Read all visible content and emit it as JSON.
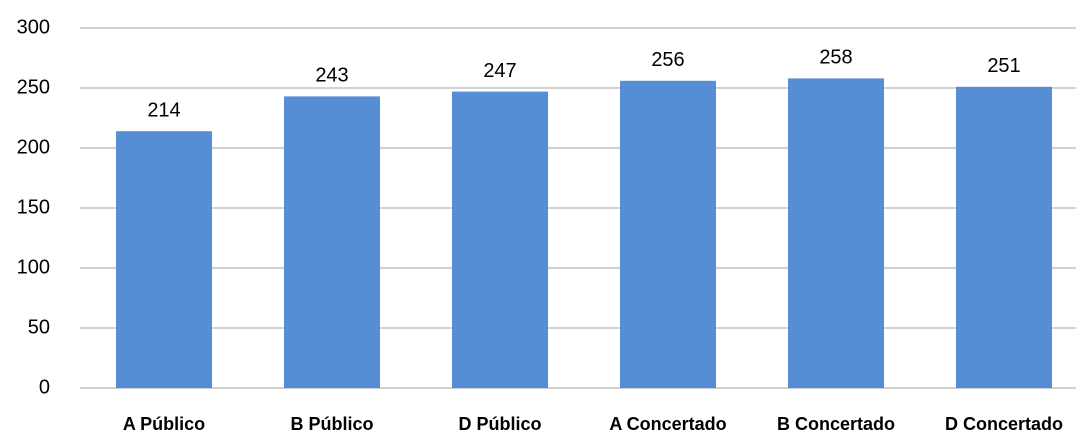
{
  "chart_data": {
    "type": "bar",
    "categories": [
      "A Público",
      "B Público",
      "D Público",
      "A Concertado",
      "B Concertado",
      "D Concertado"
    ],
    "values": [
      214,
      243,
      247,
      256,
      258,
      251
    ],
    "color": "#558ed5",
    "ylim": [
      0,
      300
    ],
    "yticks": [
      0,
      50,
      100,
      150,
      200,
      250,
      300
    ],
    "grid": true
  }
}
